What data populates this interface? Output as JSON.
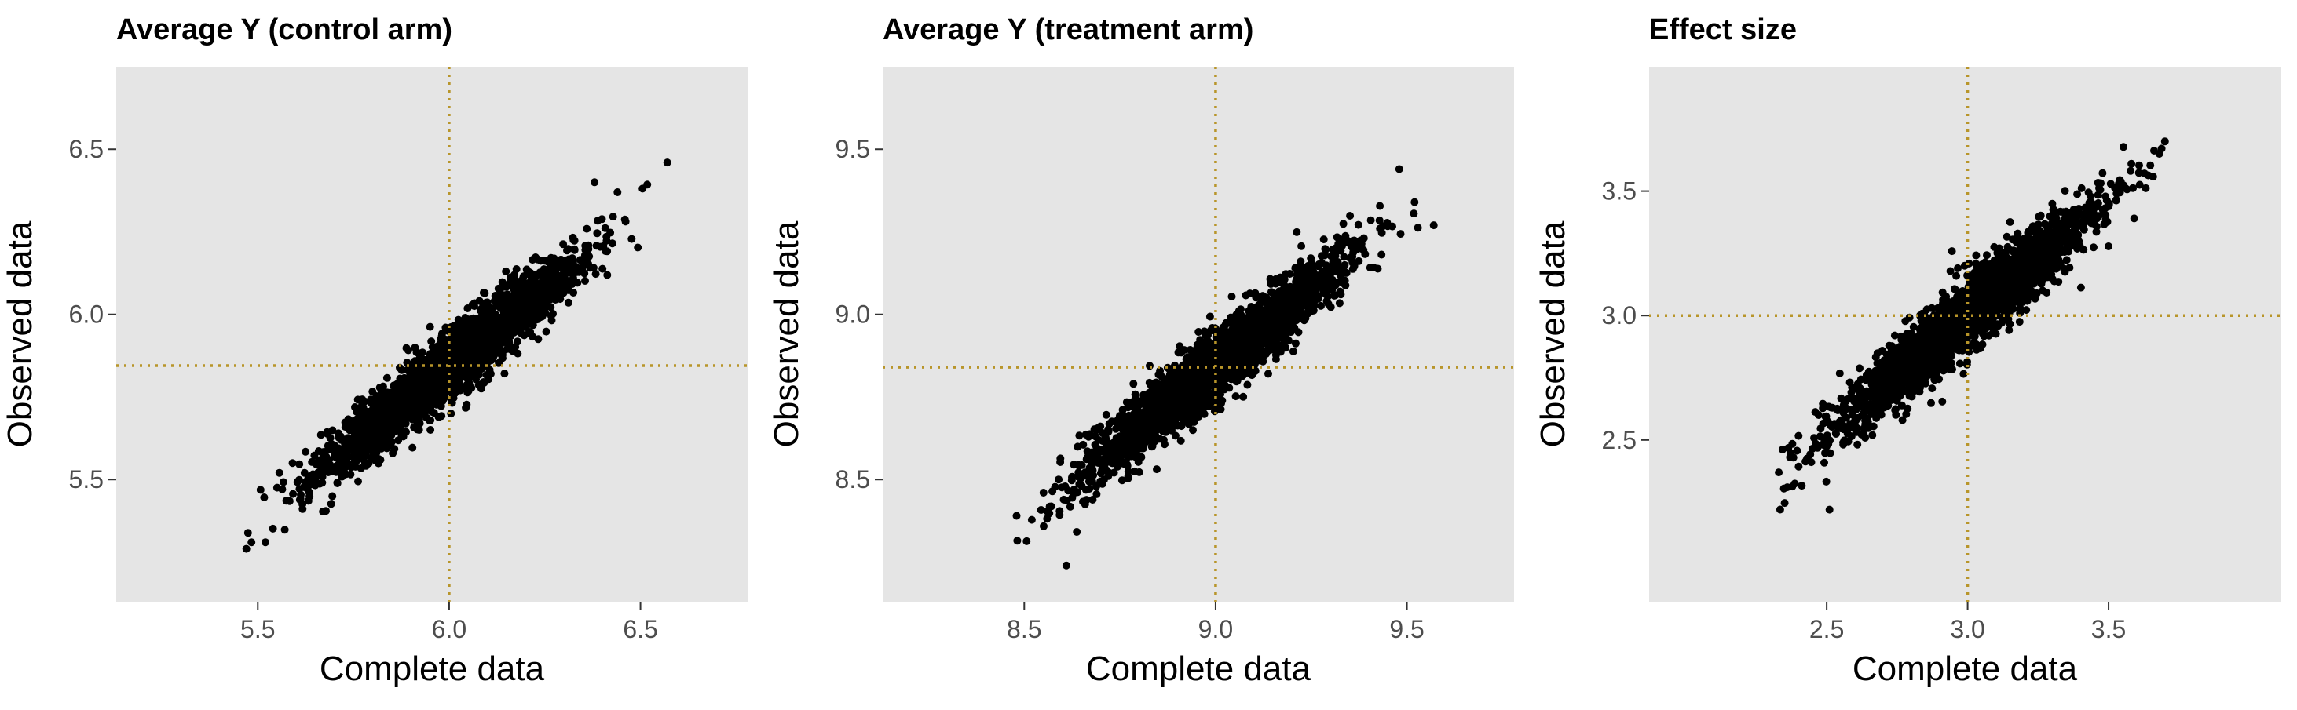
{
  "figure": {
    "background": "#ffffff",
    "panel_background": "#e5e5e5",
    "point_color": "#000000",
    "reference_line_color": "#b8952a",
    "reference_line_style": "dotted"
  },
  "chart_data": [
    {
      "type": "scatter",
      "title": "Average Y (control arm)",
      "xlabel": "Complete data",
      "ylabel": "Observed data",
      "xlim": [
        5.13,
        6.78
      ],
      "ylim": [
        5.13,
        6.75
      ],
      "xticks": [
        5.5,
        6.0,
        6.5
      ],
      "yticks": [
        5.5,
        6.0,
        6.5
      ],
      "xtick_labels": [
        "5.5",
        "6.0",
        "6.5"
      ],
      "ytick_labels": [
        "5.5",
        "6.0",
        "6.5"
      ],
      "grid": false,
      "reference_lines": {
        "vertical_x": 6.0,
        "horizontal_y": 5.845
      },
      "point_cloud": {
        "n": 2500,
        "x_mean": 6.0,
        "x_sd": 0.165,
        "y_mean": 5.845,
        "y_sd": 0.16,
        "correlation": 0.95,
        "x_range": [
          5.47,
          6.57
        ],
        "y_range": [
          5.29,
          6.47
        ]
      },
      "notable_points": [
        {
          "x": 5.47,
          "y": 5.29
        },
        {
          "x": 5.52,
          "y": 5.31
        },
        {
          "x": 6.57,
          "y": 6.46
        },
        {
          "x": 6.44,
          "y": 6.37
        },
        {
          "x": 6.38,
          "y": 6.4
        }
      ]
    },
    {
      "type": "scatter",
      "title": "Average Y (treatment arm)",
      "xlabel": "Complete data",
      "ylabel": "Observed data",
      "xlim": [
        8.13,
        9.78
      ],
      "ylim": [
        8.13,
        9.75
      ],
      "xticks": [
        8.5,
        9.0,
        9.5
      ],
      "yticks": [
        8.5,
        9.0,
        9.5
      ],
      "xtick_labels": [
        "8.5",
        "9.0",
        "9.5"
      ],
      "ytick_labels": [
        "8.5",
        "9.0",
        "9.5"
      ],
      "grid": false,
      "reference_lines": {
        "vertical_x": 9.0,
        "horizontal_y": 8.84
      },
      "point_cloud": {
        "n": 2500,
        "x_mean": 9.0,
        "x_sd": 0.165,
        "y_mean": 8.845,
        "y_sd": 0.16,
        "correlation": 0.95,
        "x_range": [
          8.48,
          9.57
        ],
        "y_range": [
          8.24,
          9.44
        ]
      },
      "notable_points": [
        {
          "x": 8.48,
          "y": 8.39
        },
        {
          "x": 8.61,
          "y": 8.24
        },
        {
          "x": 9.57,
          "y": 9.27
        },
        {
          "x": 9.48,
          "y": 9.44
        },
        {
          "x": 9.52,
          "y": 9.34
        }
      ]
    },
    {
      "type": "scatter",
      "title": "Effect size",
      "xlabel": "Complete data",
      "ylabel": "Observed data",
      "xlim": [
        1.87,
        4.11
      ],
      "ylim": [
        1.85,
        4.0
      ],
      "xticks": [
        2.5,
        3.0,
        3.5
      ],
      "yticks": [
        2.5,
        3.0,
        3.5
      ],
      "xtick_labels": [
        "2.5",
        "3.0",
        "3.5"
      ],
      "ytick_labels": [
        "2.5",
        "3.0",
        "3.5"
      ],
      "grid": false,
      "reference_lines": {
        "vertical_x": 3.0,
        "horizontal_y": 3.0
      },
      "point_cloud": {
        "n": 2500,
        "x_mean": 3.0,
        "x_sd": 0.23,
        "y_mean": 3.0,
        "y_sd": 0.225,
        "correlation": 0.95,
        "x_range": [
          2.33,
          3.7
        ],
        "y_range": [
          2.22,
          3.71
        ]
      },
      "notable_points": [
        {
          "x": 2.33,
          "y": 2.37
        },
        {
          "x": 2.36,
          "y": 2.31
        },
        {
          "x": 2.51,
          "y": 2.22
        },
        {
          "x": 3.7,
          "y": 3.7
        },
        {
          "x": 3.68,
          "y": 3.65
        }
      ]
    }
  ]
}
